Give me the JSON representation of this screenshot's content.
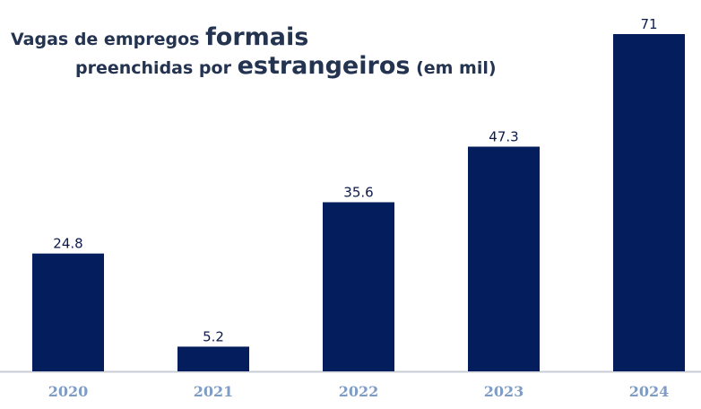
{
  "chart_data": {
    "type": "bar",
    "title_parts": {
      "line1_a": "Vagas de empregos ",
      "line1_b": "formais",
      "line2_a": "preenchidas por ",
      "line2_b": "estrangeiros",
      "line2_c": " (em mil)"
    },
    "title": "Vagas de empregos formais preenchidas por estrangeiros (em mil)",
    "categories": [
      "2020",
      "2021",
      "2022",
      "2023",
      "2024"
    ],
    "values": [
      24.8,
      5.2,
      35.6,
      47.3,
      71
    ],
    "value_labels": [
      "24.8",
      "5.2",
      "35.6",
      "47.3",
      "71"
    ],
    "xlabel": "",
    "ylabel": "",
    "ylim": [
      0,
      71
    ],
    "grid": false,
    "bar_color": "#041d5c",
    "axis_color": "#c8ccd4",
    "tick_label_color": "#7f9cc4"
  }
}
